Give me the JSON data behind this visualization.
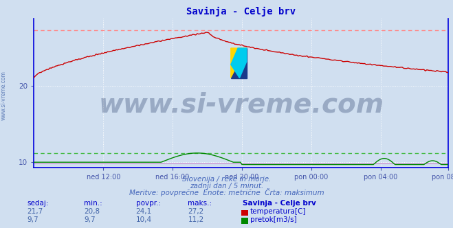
{
  "title": "Savinja - Celje brv",
  "title_color": "#0000cc",
  "bg_color": "#d0dff0",
  "plot_bg_color": "#d0dff0",
  "grid_color": "#ffffff",
  "axis_color": "#0000dd",
  "tick_color": "#4455aa",
  "ylabel_ticks": [
    10,
    20
  ],
  "ylim": [
    9.3,
    28.8
  ],
  "xlim": [
    0,
    287
  ],
  "temp_color": "#cc0000",
  "flow_color": "#008800",
  "dashed_color_red": "#ff8888",
  "dashed_color_green": "#44bb44",
  "purple_line_color": "#cc88cc",
  "watermark_text": "www.si-vreme.com",
  "watermark_color": "#1a3060",
  "watermark_alpha": 0.3,
  "watermark_fontsize": 28,
  "subtitle1": "Slovenija / reke in morje.",
  "subtitle2": "zadnji dan / 5 minut.",
  "subtitle3": "Meritve: povprečne  Enote: metrične  Črta: maksimum",
  "subtitle_color": "#4466bb",
  "footer_label_color": "#0000cc",
  "footer_value_color": "#4466aa",
  "xtick_labels": [
    "ned 12:00",
    "ned 16:00",
    "ned 20:00",
    "pon 00:00",
    "pon 04:00",
    "pon 08:00"
  ],
  "xtick_positions": [
    48,
    96,
    144,
    192,
    240,
    287
  ],
  "temp_max_line": 27.2,
  "flow_max_line": 11.2,
  "sedaj_temp": "21,7",
  "min_temp": "20,8",
  "povpr_temp": "24,1",
  "maks_temp": "27,2",
  "sedaj_flow": "9,7",
  "min_flow": "9,7",
  "povpr_flow": "10,4",
  "maks_flow": "11,2",
  "legend_title": "Savinja - Celje brv",
  "logo_yellow": "#FFD700",
  "logo_blue": "#1a3a8a",
  "logo_cyan": "#00CCEE"
}
